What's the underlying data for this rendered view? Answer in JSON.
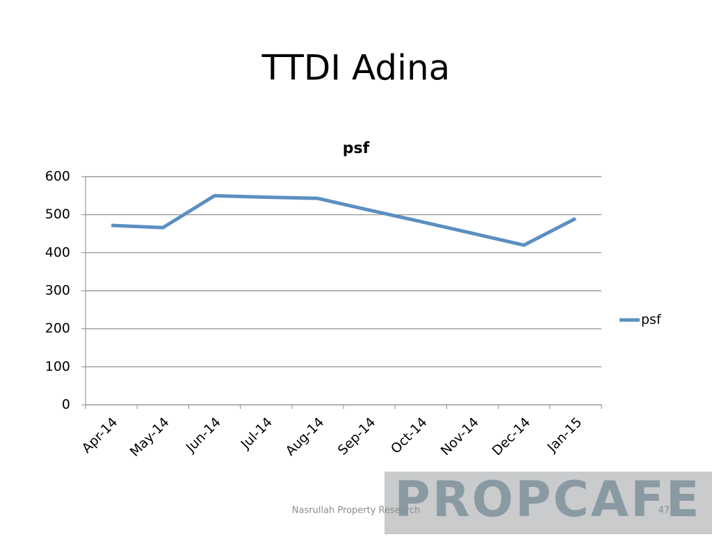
{
  "title": "TTDI Adina",
  "chart_data": {
    "type": "line",
    "title": "psf",
    "categories": [
      "Apr-14",
      "May-14",
      "Jun-14",
      "Jul-14",
      "Aug-14",
      "Sep-14",
      "Oct-14",
      "Nov-14",
      "Dec-14",
      "Jan-15"
    ],
    "series": [
      {
        "name": "psf",
        "color": "#5b8fbf",
        "values": [
          472,
          466,
          550,
          546,
          543,
          512,
          482,
          451,
          420,
          490
        ]
      }
    ],
    "ylim": [
      0,
      600
    ],
    "yticks": [
      0,
      100,
      200,
      300,
      400,
      500,
      600
    ],
    "grid": true,
    "legend": "right"
  },
  "footer": "Nasrullah Property Research",
  "page_number": "47",
  "logo": "PROPCAFE"
}
